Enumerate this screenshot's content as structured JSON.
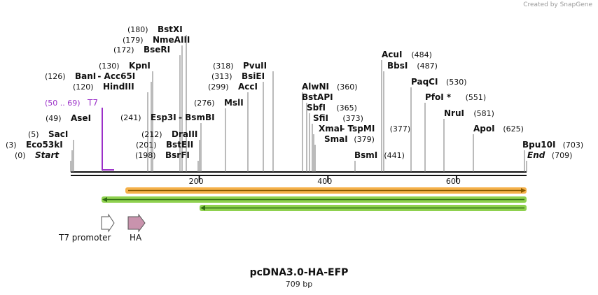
{
  "credit": "Created by SnapGene",
  "plasmid": {
    "name": "pcDNA3.0-HA-EFP",
    "size_label": "709 bp"
  },
  "length": 709,
  "ruler": {
    "ticks": [
      200,
      400,
      600
    ]
  },
  "primer": {
    "label": "T7",
    "range": "(50 .. 69)",
    "color": "#9b30c8"
  },
  "sites": [
    {
      "pos": "(0)",
      "name": "Start",
      "style": "italic"
    },
    {
      "pos": "(3)",
      "name": "Eco53kI"
    },
    {
      "pos": "(5)",
      "name": "SacI"
    },
    {
      "pos": "(49)",
      "name": "AseI"
    },
    {
      "pos": "(120)",
      "name": "HindIII"
    },
    {
      "pos": "(126)",
      "name": "BanI",
      "suffix": " - Acc65I"
    },
    {
      "pos": "(130)",
      "name": "KpnI"
    },
    {
      "pos": "(172)",
      "name": "BseRI"
    },
    {
      "pos": "(179)",
      "name": "NmeAIII"
    },
    {
      "pos": "(180)",
      "name": "BstXI"
    },
    {
      "pos": "(198)",
      "name": "BsrFI"
    },
    {
      "pos": "(201)",
      "name": "BstEII"
    },
    {
      "pos": "(212)",
      "name": "DraIII"
    },
    {
      "pos": "(241)",
      "name": "Esp3I",
      "suffix": " - BsmBI"
    },
    {
      "pos": "(276)",
      "name": "MslI"
    },
    {
      "pos": "(299)",
      "name": "AccI"
    },
    {
      "pos": "(313)",
      "name": "BsiEI"
    },
    {
      "pos": "(318)",
      "name": "PvuII"
    },
    {
      "name": "AlwNI",
      "pos": "(360)"
    },
    {
      "name": "BstAPI"
    },
    {
      "name": "SbfI",
      "pos": "(365)"
    },
    {
      "name": "SfiI",
      "pos": "(373)"
    },
    {
      "name": "XmaI",
      "suffix": " - TspMI",
      "pos": "(377)"
    },
    {
      "name": "SmaI",
      "pos": "(379)"
    },
    {
      "name": "BsmI",
      "pos": "(441)"
    },
    {
      "name": "AcuI",
      "pos": "(484)"
    },
    {
      "name": "BbsI",
      "pos": "(487)"
    },
    {
      "name": "PaqCI",
      "pos": "(530)"
    },
    {
      "name": "PfoI *",
      "pos": "(551)"
    },
    {
      "name": "NruI",
      "pos": "(581)"
    },
    {
      "name": "ApoI",
      "pos": "(625)"
    },
    {
      "name": "Bpu10I",
      "pos": "(703)"
    },
    {
      "name": "End",
      "pos": "(709)",
      "style": "italic"
    }
  ],
  "features": [
    {
      "name": "T7 promoter",
      "color": "#ffffff"
    },
    {
      "name": "HA",
      "color": "#c993ad"
    }
  ],
  "colors": {
    "orf": "#f5b14a",
    "orf_arrow": "#8a5a00",
    "orf2": "#8fd14f",
    "orf2_arrow": "#2e6b12",
    "backbone": "#111111"
  }
}
